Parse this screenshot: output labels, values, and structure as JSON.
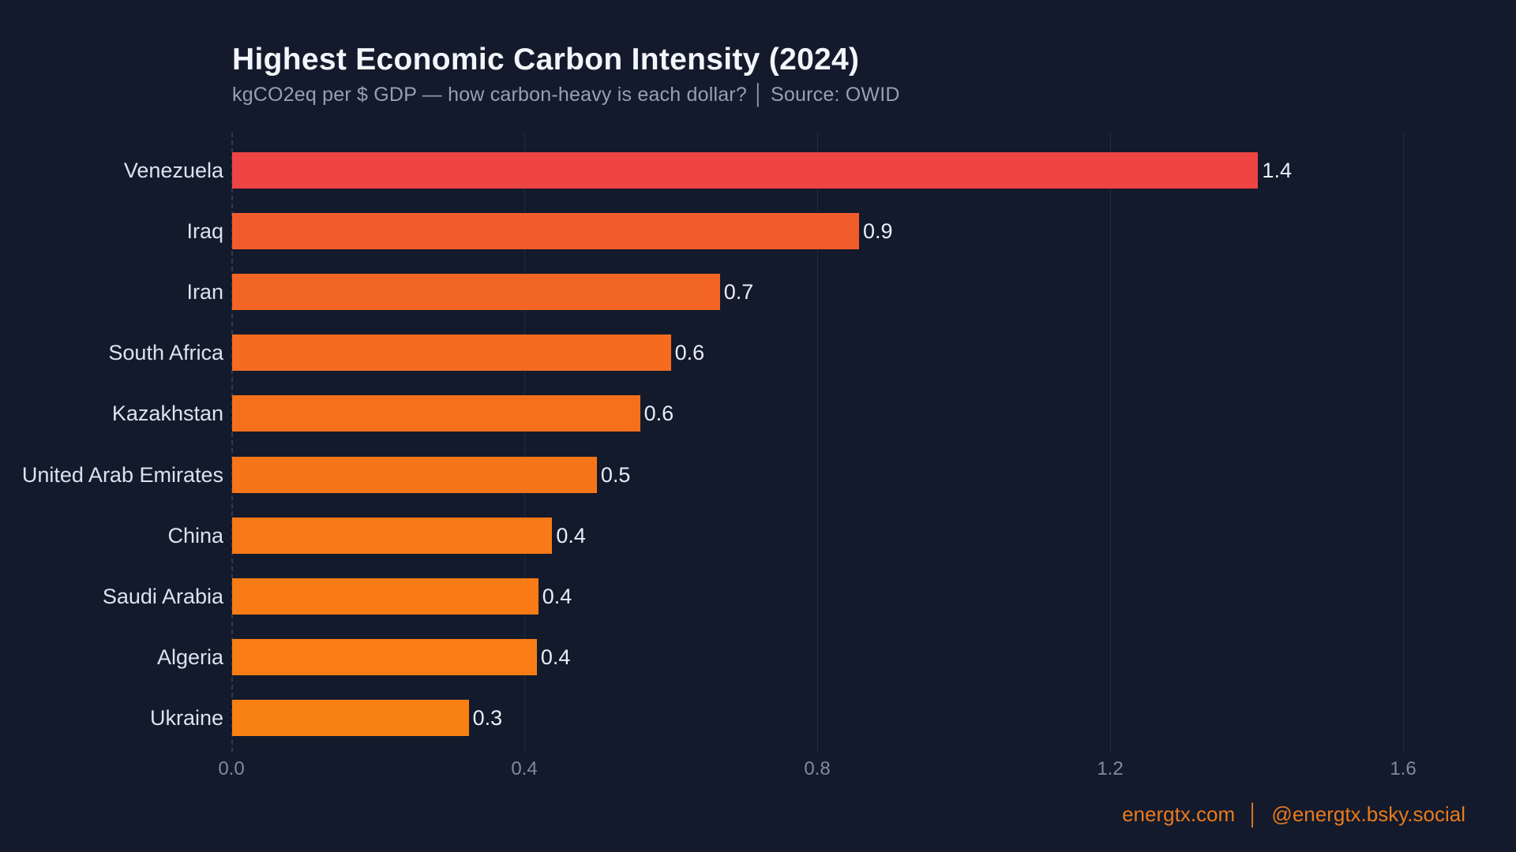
{
  "header": {
    "title": "Highest Economic Carbon Intensity (2024)",
    "subtitle": "kgCO2eq per $ GDP — how carbon-heavy is each dollar?  │  Source: OWID"
  },
  "chart_data": {
    "type": "bar",
    "orientation": "horizontal",
    "title": "Highest Economic Carbon Intensity (2024)",
    "subtitle": "kgCO2eq per $ GDP — how carbon-heavy is each dollar? | Source: OWID",
    "categories": [
      "Venezuela",
      "Iraq",
      "Iran",
      "South Africa",
      "Kazakhstan",
      "United Arab Emirates",
      "China",
      "Saudi Arabia",
      "Algeria",
      "Ukraine"
    ],
    "values": [
      1.401,
      0.856,
      0.666,
      0.599,
      0.557,
      0.498,
      0.437,
      0.418,
      0.416,
      0.323
    ],
    "value_labels": [
      "1.4",
      "0.9",
      "0.7",
      "0.6",
      "0.6",
      "0.5",
      "0.4",
      "0.4",
      "0.4",
      "0.3"
    ],
    "bar_colors": [
      "#ef4444",
      "#f25c2c",
      "#f36524",
      "#f56b20",
      "#f6701c",
      "#f77519",
      "#f87917",
      "#f87b15",
      "#f97d14",
      "#f98111"
    ],
    "highlight_color": "#ef4444",
    "base_color": "#f97316",
    "xlabel": "",
    "ylabel": "",
    "xlim": [
      0.0,
      1.63
    ],
    "x_ticks": [
      0.0,
      0.4,
      0.8,
      1.2,
      1.6
    ],
    "x_tick_labels": [
      "0.0",
      "0.4",
      "0.8",
      "1.2",
      "1.6"
    ],
    "grid": "vertical-gridlines-on, dashed zero baseline",
    "legend": "none",
    "background_color": "#131a2b"
  },
  "footer": {
    "site": "energtx.com",
    "separator": "│",
    "handle": "@energtx.bsky.social",
    "color": "#e87a1e"
  }
}
